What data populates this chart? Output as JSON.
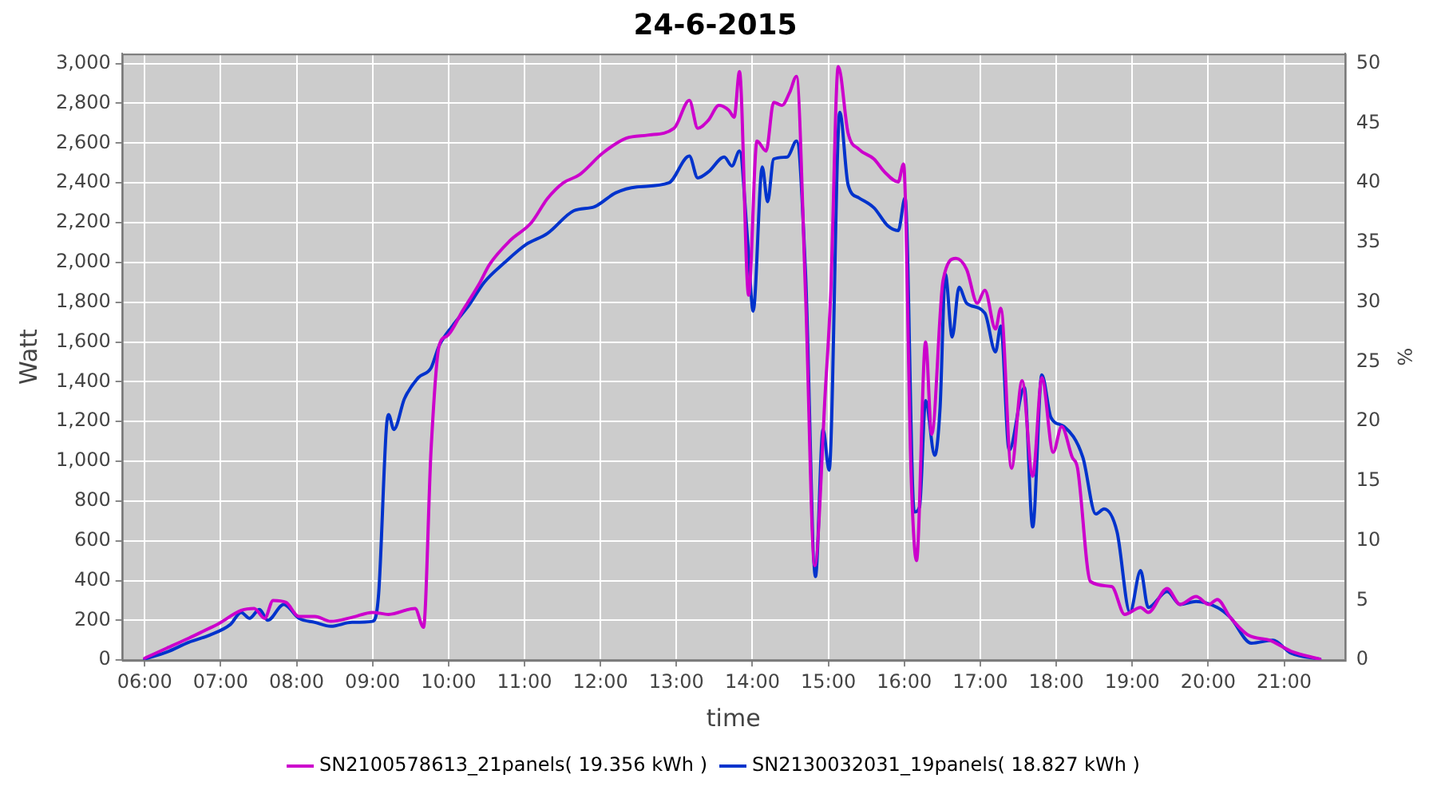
{
  "chart_data": {
    "type": "line",
    "title": "24-6-2015",
    "xlabel": "time",
    "ylabel": "Watt",
    "y2label": "%",
    "xlim": [
      5.7,
      21.8
    ],
    "xticks": [
      {
        "value": 6,
        "label": "06:00"
      },
      {
        "value": 7,
        "label": "07:00"
      },
      {
        "value": 8,
        "label": "08:00"
      },
      {
        "value": 9,
        "label": "09:00"
      },
      {
        "value": 10,
        "label": "10:00"
      },
      {
        "value": 11,
        "label": "11:00"
      },
      {
        "value": 12,
        "label": "12:00"
      },
      {
        "value": 13,
        "label": "13:00"
      },
      {
        "value": 14,
        "label": "14:00"
      },
      {
        "value": 15,
        "label": "15:00"
      },
      {
        "value": 16,
        "label": "16:00"
      },
      {
        "value": 17,
        "label": "17:00"
      },
      {
        "value": 18,
        "label": "18:00"
      },
      {
        "value": 19,
        "label": "19:00"
      },
      {
        "value": 20,
        "label": "20:00"
      },
      {
        "value": 21,
        "label": "21:00"
      }
    ],
    "ylim": [
      0,
      3050
    ],
    "yticks": [
      0,
      200,
      400,
      600,
      800,
      {
        "value": 1000,
        "label": "1,000"
      },
      {
        "value": 1200,
        "label": "1,200"
      },
      {
        "value": 1400,
        "label": "1,400"
      },
      {
        "value": 1600,
        "label": "1,600"
      },
      {
        "value": 1800,
        "label": "1,800"
      },
      {
        "value": 2000,
        "label": "2,000"
      },
      {
        "value": 2200,
        "label": "2,200"
      },
      {
        "value": 2400,
        "label": "2,400"
      },
      {
        "value": 2600,
        "label": "2,600"
      },
      {
        "value": 2800,
        "label": "2,800"
      },
      {
        "value": 3000,
        "label": "3,000"
      }
    ],
    "y2lim": [
      0,
      50.83
    ],
    "y2ticks": [
      0,
      5,
      10,
      15,
      20,
      25,
      30,
      35,
      40,
      45,
      50
    ],
    "grid": true,
    "legend": "bottom",
    "marker": "none",
    "line_style": "solid",
    "series": [
      {
        "name": "SN2100578613_21panels( 19.356 kWh )",
        "color": "#cc00cc",
        "x": [
          6.0,
          6.29,
          6.58,
          6.85,
          6.96,
          7.27,
          7.44,
          7.58,
          7.69,
          7.86,
          8.03,
          8.24,
          8.45,
          8.73,
          9.0,
          9.21,
          9.56,
          9.67,
          9.77,
          9.875,
          9.98,
          10.19,
          10.4,
          10.54,
          10.81,
          11.09,
          11.3,
          11.51,
          11.72,
          12.03,
          12.34,
          12.62,
          12.97,
          13.17,
          13.28,
          13.42,
          13.56,
          13.69,
          13.76,
          13.83,
          13.95,
          14.06,
          14.18,
          14.28,
          14.39,
          14.49,
          14.58,
          14.7,
          14.82,
          14.96,
          15.03,
          15.13,
          15.26,
          15.4,
          15.6,
          15.74,
          15.92,
          15.99,
          16.09,
          16.16,
          16.28,
          16.36,
          16.51,
          16.68,
          16.82,
          16.96,
          17.06,
          17.2,
          17.27,
          17.41,
          17.55,
          17.69,
          17.81,
          17.96,
          18.07,
          18.21,
          18.28,
          18.45,
          18.73,
          18.9,
          19.11,
          19.21,
          19.46,
          19.63,
          19.84,
          20.01,
          20.12,
          20.29,
          20.53,
          20.81,
          21.09,
          21.47
        ],
        "values": [
          10,
          60,
          110,
          160,
          180,
          250,
          260,
          210,
          300,
          290,
          220,
          220,
          195,
          215,
          240,
          230,
          260,
          165,
          1060,
          1580,
          1630,
          1760,
          1890,
          1990,
          2110,
          2200,
          2320,
          2400,
          2440,
          2550,
          2625,
          2640,
          2675,
          2815,
          2675,
          2715,
          2790,
          2765,
          2730,
          2960,
          1835,
          2610,
          2560,
          2805,
          2790,
          2855,
          2935,
          1835,
          475,
          1355,
          1835,
          2985,
          2650,
          2570,
          2520,
          2455,
          2405,
          2495,
          925,
          500,
          1600,
          1135,
          1910,
          2020,
          1965,
          1795,
          1860,
          1665,
          1770,
          965,
          1405,
          925,
          1420,
          1045,
          1175,
          1020,
          965,
          395,
          370,
          230,
          265,
          240,
          360,
          280,
          320,
          280,
          305,
          215,
          125,
          100,
          45,
          5
        ]
      },
      {
        "name": "SN2130032031_19panels( 18.827 kWh )",
        "color": "#0033cc",
        "x": [
          6.0,
          6.29,
          6.58,
          6.85,
          7.13,
          7.27,
          7.38,
          7.51,
          7.62,
          7.83,
          8.03,
          8.24,
          8.45,
          8.73,
          9.0,
          9.08,
          9.18,
          9.21,
          9.28,
          9.42,
          9.6,
          9.77,
          9.875,
          10.05,
          10.26,
          10.47,
          10.74,
          11.02,
          11.3,
          11.65,
          11.92,
          12.2,
          12.48,
          12.9,
          13.17,
          13.28,
          13.42,
          13.63,
          13.73,
          13.83,
          13.94,
          14.01,
          14.13,
          14.2,
          14.28,
          14.46,
          14.58,
          14.7,
          14.83,
          14.93,
          15.01,
          15.15,
          15.26,
          15.4,
          15.6,
          15.78,
          15.92,
          16.01,
          16.13,
          16.2,
          16.28,
          16.4,
          16.47,
          16.54,
          16.63,
          16.72,
          16.82,
          17.06,
          17.2,
          17.27,
          17.38,
          17.58,
          17.69,
          17.81,
          17.93,
          18.1,
          18.35,
          18.52,
          18.63,
          18.8,
          18.97,
          19.11,
          19.21,
          19.46,
          19.63,
          19.84,
          20.12,
          20.29,
          20.57,
          20.85,
          21.09,
          21.47
        ],
        "values": [
          5,
          40,
          90,
          125,
          180,
          240,
          210,
          255,
          200,
          280,
          210,
          190,
          170,
          190,
          195,
          335,
          1160,
          1235,
          1160,
          1315,
          1420,
          1470,
          1580,
          1680,
          1780,
          1900,
          2000,
          2090,
          2145,
          2260,
          2280,
          2350,
          2380,
          2400,
          2535,
          2425,
          2455,
          2530,
          2485,
          2560,
          2095,
          1755,
          2480,
          2305,
          2520,
          2530,
          2610,
          1940,
          420,
          1160,
          955,
          2755,
          2390,
          2325,
          2275,
          2185,
          2160,
          2325,
          745,
          770,
          1305,
          1030,
          1265,
          1940,
          1625,
          1875,
          1795,
          1745,
          1550,
          1680,
          1055,
          1370,
          670,
          1435,
          1220,
          1175,
          1020,
          735,
          760,
          645,
          240,
          450,
          265,
          345,
          280,
          295,
          265,
          215,
          85,
          100,
          35,
          5
        ]
      }
    ]
  }
}
